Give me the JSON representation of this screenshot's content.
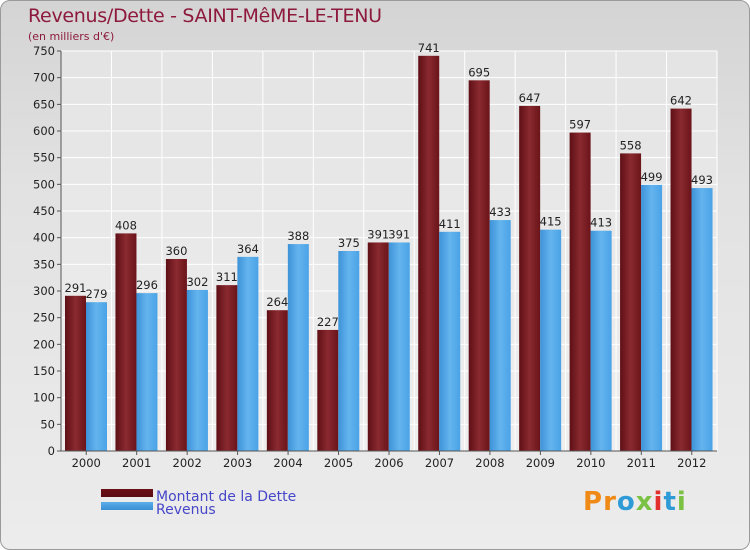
{
  "chart_data": {
    "type": "bar",
    "title": "Revenus/Dette - SAINT-MêME-LE-TENU",
    "subtitle": "(en milliers d'€)",
    "xlabel": "",
    "ylabel": "",
    "ylim": [
      0,
      750
    ],
    "yticks": [
      0,
      50,
      100,
      150,
      200,
      250,
      300,
      350,
      400,
      450,
      500,
      550,
      600,
      650,
      700,
      750
    ],
    "grid": true,
    "legend_position": "bottom-left",
    "categories": [
      "2000",
      "2001",
      "2002",
      "2003",
      "2004",
      "2005",
      "2006",
      "2007",
      "2008",
      "2009",
      "2010",
      "2011",
      "2012"
    ],
    "series": [
      {
        "name": "Montant de la Dette",
        "color": "#7a1c22",
        "values": [
          291,
          408,
          360,
          311,
          264,
          227,
          391,
          741,
          695,
          647,
          597,
          558,
          642
        ]
      },
      {
        "name": "Revenus",
        "color": "#4aa3e6",
        "values": [
          279,
          296,
          302,
          364,
          388,
          375,
          391,
          411,
          433,
          415,
          413,
          499,
          493
        ]
      }
    ]
  },
  "logo": {
    "text": "Proxiti",
    "colors": [
      "#f08a16",
      "#f08a16",
      "#2e9bd6",
      "#7bc143",
      "#e2312c",
      "#2e9bd6",
      "#7bc143"
    ]
  }
}
